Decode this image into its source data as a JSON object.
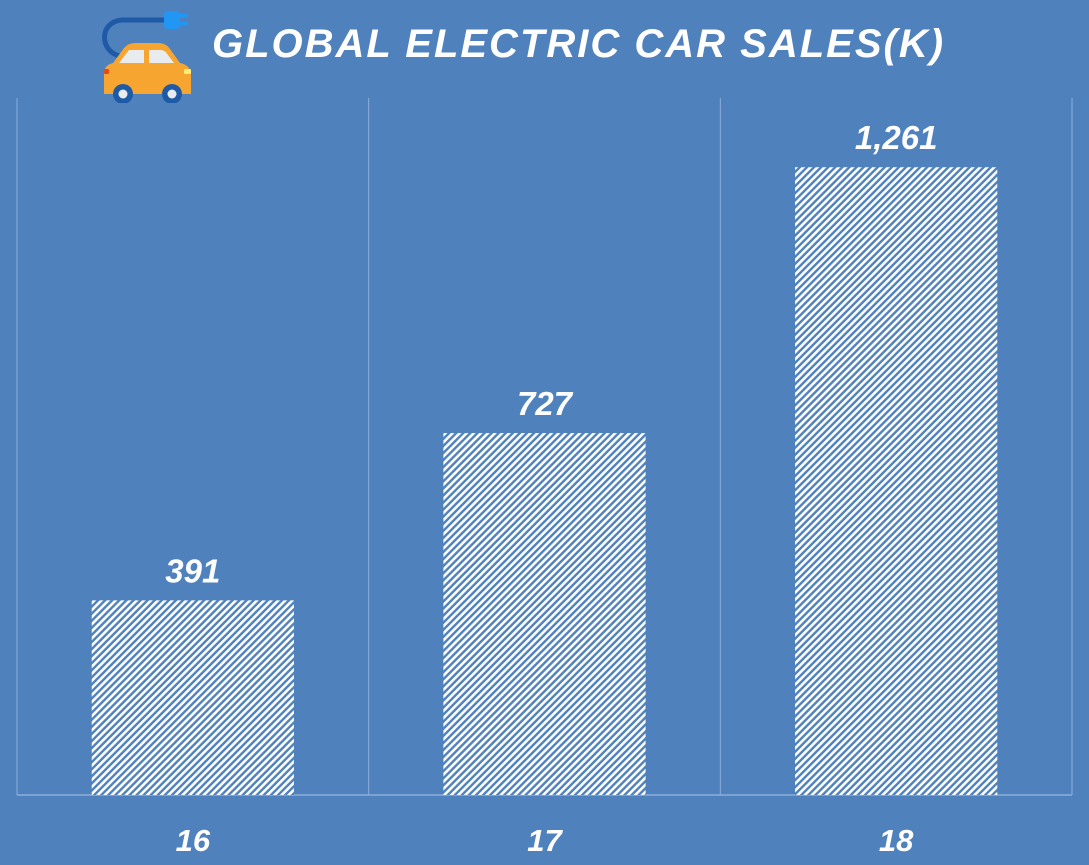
{
  "chart_data": {
    "type": "bar",
    "title": "GLOBAL ELECTRIC CAR SALES(K)",
    "categories": [
      "16",
      "17",
      "18"
    ],
    "values": [
      391,
      727,
      1261
    ],
    "data_labels": [
      "391",
      "727",
      "1,261"
    ],
    "ylim": [
      0,
      1400
    ],
    "grid": "vertical separators between categories",
    "legend": "none",
    "bar_fill": "white diagonal hatch",
    "background_color": "#4f81bd",
    "text_color": "#ffffff"
  },
  "icon": "electric-car-icon"
}
